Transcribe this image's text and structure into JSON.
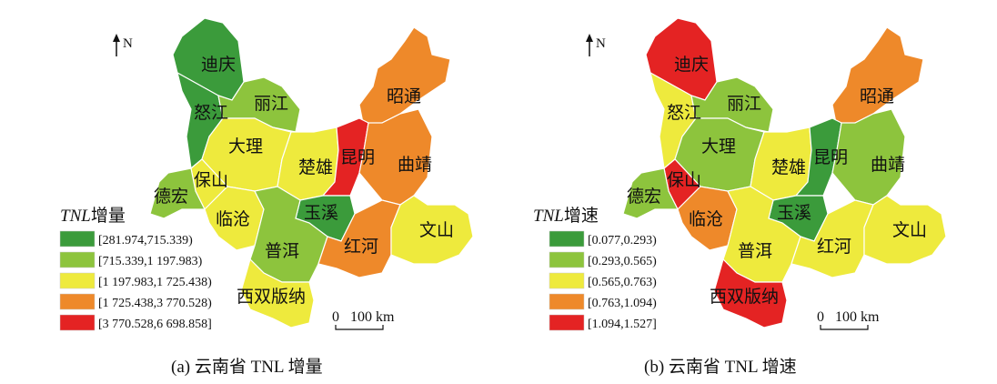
{
  "north_label": "N",
  "scale_bar": {
    "zero": "0",
    "value": "100 km"
  },
  "class_colors": [
    "#3b9b3b",
    "#8dc43d",
    "#eeea3d",
    "#ee892a",
    "#e42323"
  ],
  "maps": [
    {
      "caption": "(a) 云南省 TNL 增量",
      "legend_title_italic": "TNL",
      "legend_title": "增量",
      "legend": [
        "[281.974,715.339)",
        "[715.339,1 197.983)",
        "[1 197.983,1 725.438)",
        "[1 725.438,3 770.528)",
        "[3 770.528,6 698.858]"
      ],
      "regions": [
        {
          "name": "迪庆",
          "class": 0
        },
        {
          "name": "怒江",
          "class": 0
        },
        {
          "name": "丽江",
          "class": 1
        },
        {
          "name": "昭通",
          "class": 3
        },
        {
          "name": "大理",
          "class": 2
        },
        {
          "name": "楚雄",
          "class": 2
        },
        {
          "name": "昆明",
          "class": 4
        },
        {
          "name": "曲靖",
          "class": 3
        },
        {
          "name": "保山",
          "class": 2
        },
        {
          "name": "德宏",
          "class": 1
        },
        {
          "name": "临沧",
          "class": 2
        },
        {
          "name": "玉溪",
          "class": 0
        },
        {
          "name": "普洱",
          "class": 1
        },
        {
          "name": "红河",
          "class": 3
        },
        {
          "name": "文山",
          "class": 2
        },
        {
          "name": "西双版纳",
          "class": 2
        }
      ]
    },
    {
      "caption": "(b) 云南省 TNL 增速",
      "legend_title_italic": "TNL",
      "legend_title": "增速",
      "legend": [
        "[0.077,0.293)",
        "[0.293,0.565)",
        "[0.565,0.763)",
        "[0.763,1.094)",
        "[1.094,1.527]"
      ],
      "regions": [
        {
          "name": "迪庆",
          "class": 4
        },
        {
          "name": "怒江",
          "class": 2
        },
        {
          "name": "丽江",
          "class": 1
        },
        {
          "name": "昭通",
          "class": 3
        },
        {
          "name": "大理",
          "class": 1
        },
        {
          "name": "楚雄",
          "class": 2
        },
        {
          "name": "昆明",
          "class": 0
        },
        {
          "name": "曲靖",
          "class": 1
        },
        {
          "name": "保山",
          "class": 4
        },
        {
          "name": "德宏",
          "class": 1
        },
        {
          "name": "临沧",
          "class": 3
        },
        {
          "name": "玉溪",
          "class": 0
        },
        {
          "name": "普洱",
          "class": 2
        },
        {
          "name": "红河",
          "class": 2
        },
        {
          "name": "文山",
          "class": 2
        },
        {
          "name": "西双版纳",
          "class": 4
        }
      ]
    }
  ]
}
